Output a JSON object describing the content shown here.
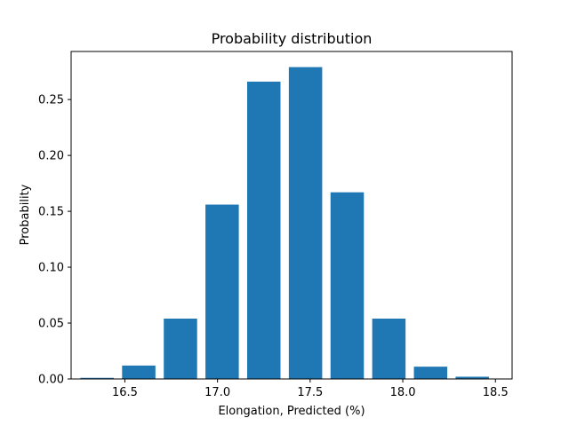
{
  "chart_data": {
    "type": "bar",
    "title": "Probability distribution",
    "xlabel": "Elongation, Predicted (%)",
    "ylabel": "Probability",
    "x": [
      16.35,
      16.575,
      16.8,
      17.025,
      17.25,
      17.475,
      17.7,
      17.925,
      18.15,
      18.375
    ],
    "values": [
      0.001,
      0.012,
      0.054,
      0.156,
      0.266,
      0.279,
      0.167,
      0.054,
      0.011,
      0.002
    ],
    "bar_width": 0.18,
    "xlim": [
      16.21,
      18.59
    ],
    "ylim": [
      0,
      0.293
    ],
    "xticks": [
      16.5,
      17.0,
      17.5,
      18.0,
      18.5
    ],
    "xtick_labels": [
      "16.5",
      "17.0",
      "17.5",
      "18.0",
      "18.5"
    ],
    "yticks": [
      0,
      0.05,
      0.1,
      0.15,
      0.2,
      0.25
    ],
    "ytick_labels": [
      "0.00",
      "0.05",
      "0.10",
      "0.15",
      "0.20",
      "0.25"
    ],
    "grid": false,
    "bar_color": "#1f77b4"
  }
}
